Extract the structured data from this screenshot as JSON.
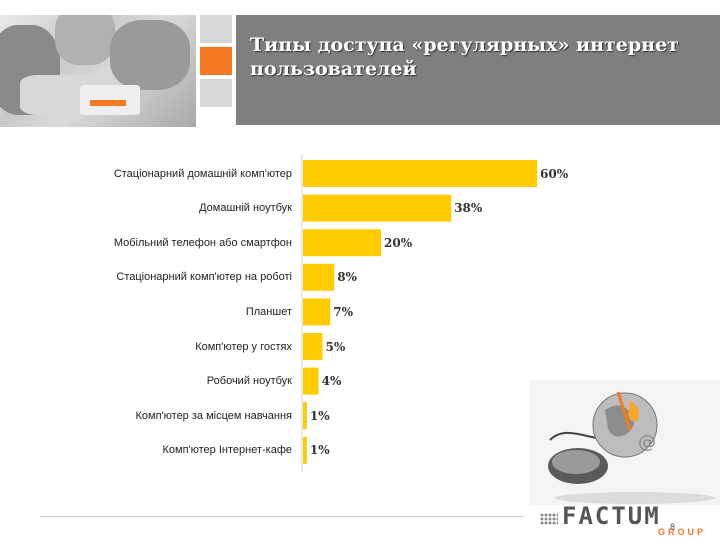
{
  "slide": {
    "title": "Типы доступа «регулярных» интернет пользователей",
    "logo_main": "FACTUM",
    "logo_sub": "GROUP",
    "page_number": "8"
  },
  "colors": {
    "bar": "#ffcc00",
    "accent": "#f47920",
    "title_background": "#7f7f7f"
  },
  "chart_data": {
    "type": "bar",
    "orientation": "horizontal",
    "categories": [
      "Стаціонарний домашній комп'ютер",
      "Домашній ноутбук",
      "Мобільний телефон або смартфон",
      "Стаціонарний комп'ютер на роботі",
      "Планшет",
      "Комп'ютер у гостях",
      "Робочий ноутбук",
      "Комп'ютер за місцем навчання",
      "Комп'ютер Інтернет-кафе"
    ],
    "values": [
      60,
      38,
      20,
      8,
      7,
      5,
      4,
      1,
      1
    ],
    "value_labels": [
      "60%",
      "38%",
      "20%",
      "8%",
      "7%",
      "5%",
      "4%",
      "1%",
      "1%"
    ],
    "unit": "%",
    "title": "",
    "xlabel": "",
    "ylabel": "",
    "xlim": [
      0,
      60
    ],
    "grid": false,
    "legend": "none"
  }
}
